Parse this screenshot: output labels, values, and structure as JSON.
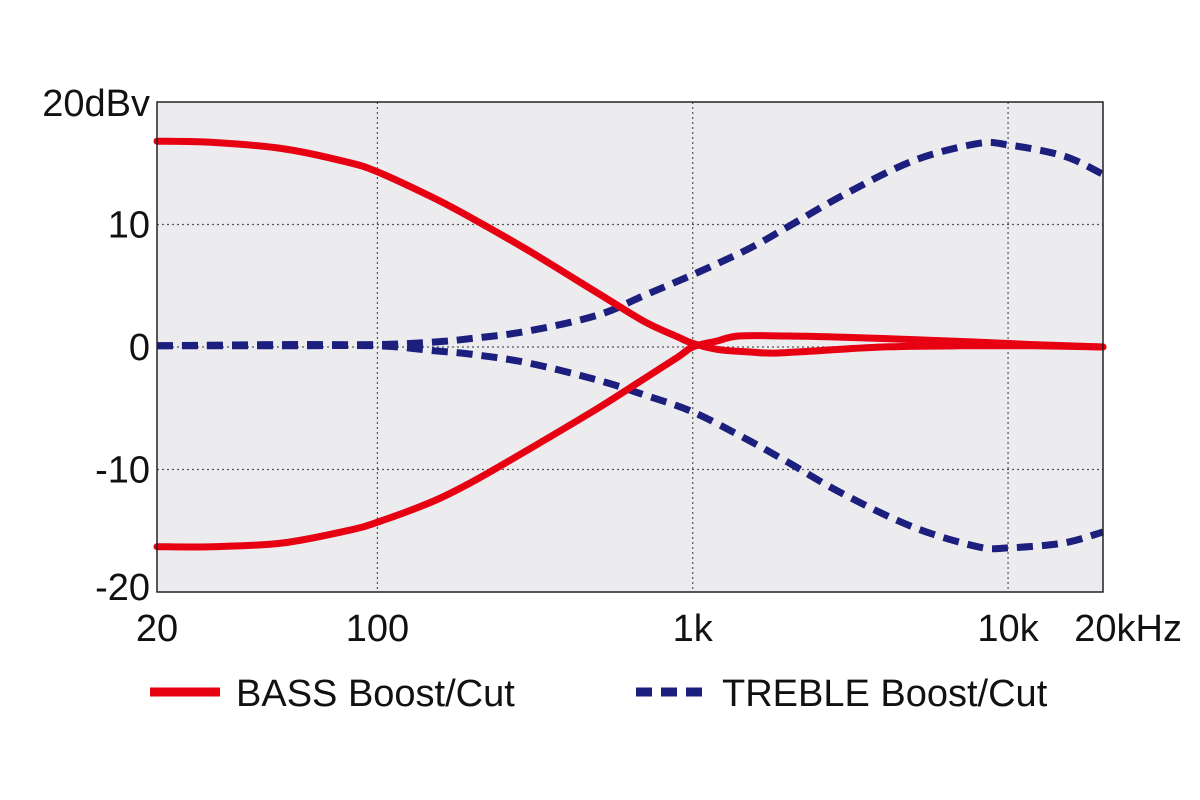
{
  "chart_data": {
    "type": "line",
    "title": "",
    "xlabel": "",
    "ylabel": "",
    "x_scale": "log",
    "xlim": [
      20,
      20000
    ],
    "ylim": [
      -20,
      20
    ],
    "grid": true,
    "legend_placement": "bottom",
    "plot_background": "#ececef",
    "x_ticks": [
      {
        "value": 20,
        "label": "20"
      },
      {
        "value": 100,
        "label": "100"
      },
      {
        "value": 1000,
        "label": "1k"
      },
      {
        "value": 10000,
        "label": "10k"
      },
      {
        "value": 20000,
        "label": "20kHz"
      }
    ],
    "y_ticks": [
      {
        "value": 20,
        "label": "20dBv"
      },
      {
        "value": 10,
        "label": "10"
      },
      {
        "value": 0,
        "label": "0"
      },
      {
        "value": -10,
        "label": "-10"
      },
      {
        "value": -20,
        "label": "-20"
      }
    ],
    "series": [
      {
        "name": "BASS Boost/Cut",
        "color": "#e60012",
        "dash": "solid",
        "curves": [
          {
            "points": [
              [
                20,
                16.8
              ],
              [
                30,
                16.7
              ],
              [
                50,
                16.2
              ],
              [
                80,
                15.1
              ],
              [
                100,
                14.3
              ],
              [
                150,
                12.2
              ],
              [
                200,
                10.5
              ],
              [
                300,
                7.9
              ],
              [
                500,
                4.4
              ],
              [
                700,
                2.1
              ],
              [
                900,
                0.8
              ],
              [
                1000,
                0.3
              ],
              [
                1200,
                -0.2
              ],
              [
                1500,
                -0.4
              ],
              [
                1800,
                -0.5
              ],
              [
                2500,
                -0.3
              ],
              [
                4000,
                0.0
              ],
              [
                7000,
                0.1
              ],
              [
                12000,
                0.1
              ],
              [
                20000,
                0.0
              ]
            ]
          },
          {
            "points": [
              [
                20,
                -16.3
              ],
              [
                30,
                -16.3
              ],
              [
                50,
                -16.0
              ],
              [
                80,
                -15.0
              ],
              [
                100,
                -14.3
              ],
              [
                150,
                -12.6
              ],
              [
                200,
                -11.0
              ],
              [
                300,
                -8.4
              ],
              [
                500,
                -5.0
              ],
              [
                700,
                -2.6
              ],
              [
                900,
                -0.8
              ],
              [
                1000,
                0.0
              ],
              [
                1200,
                0.5
              ],
              [
                1400,
                0.9
              ],
              [
                2000,
                0.9
              ],
              [
                3000,
                0.8
              ],
              [
                5000,
                0.6
              ],
              [
                8000,
                0.4
              ],
              [
                12000,
                0.2
              ],
              [
                20000,
                0.0
              ]
            ]
          }
        ]
      },
      {
        "name": "TREBLE Boost/Cut",
        "color": "#1c1f7e",
        "dash": "dashed",
        "curves": [
          {
            "points": [
              [
                20,
                0.1
              ],
              [
                50,
                0.2
              ],
              [
                100,
                0.2
              ],
              [
                150,
                0.4
              ],
              [
                200,
                0.7
              ],
              [
                300,
                1.3
              ],
              [
                500,
                2.6
              ],
              [
                700,
                4.2
              ],
              [
                1000,
                5.9
              ],
              [
                1500,
                8.0
              ],
              [
                2000,
                9.8
              ],
              [
                3000,
                12.4
              ],
              [
                5000,
                15.2
              ],
              [
                8000,
                16.6
              ],
              [
                10000,
                16.5
              ],
              [
                15000,
                15.6
              ],
              [
                20000,
                14.1
              ]
            ]
          },
          {
            "points": [
              [
                20,
                0.1
              ],
              [
                50,
                0.1
              ],
              [
                100,
                0.1
              ],
              [
                150,
                -0.3
              ],
              [
                200,
                -0.6
              ],
              [
                300,
                -1.3
              ],
              [
                500,
                -2.7
              ],
              [
                700,
                -3.9
              ],
              [
                1000,
                -5.3
              ],
              [
                1500,
                -7.6
              ],
              [
                2000,
                -9.4
              ],
              [
                3000,
                -12.0
              ],
              [
                5000,
                -14.7
              ],
              [
                8000,
                -16.3
              ],
              [
                10000,
                -16.4
              ],
              [
                15000,
                -16.0
              ],
              [
                20000,
                -15.1
              ]
            ]
          }
        ]
      }
    ],
    "legend": [
      {
        "label": "BASS Boost/Cut",
        "color": "#e60012",
        "dash": "solid"
      },
      {
        "label": "TREBLE Boost/Cut",
        "color": "#1c1f7e",
        "dash": "dashed"
      }
    ]
  }
}
